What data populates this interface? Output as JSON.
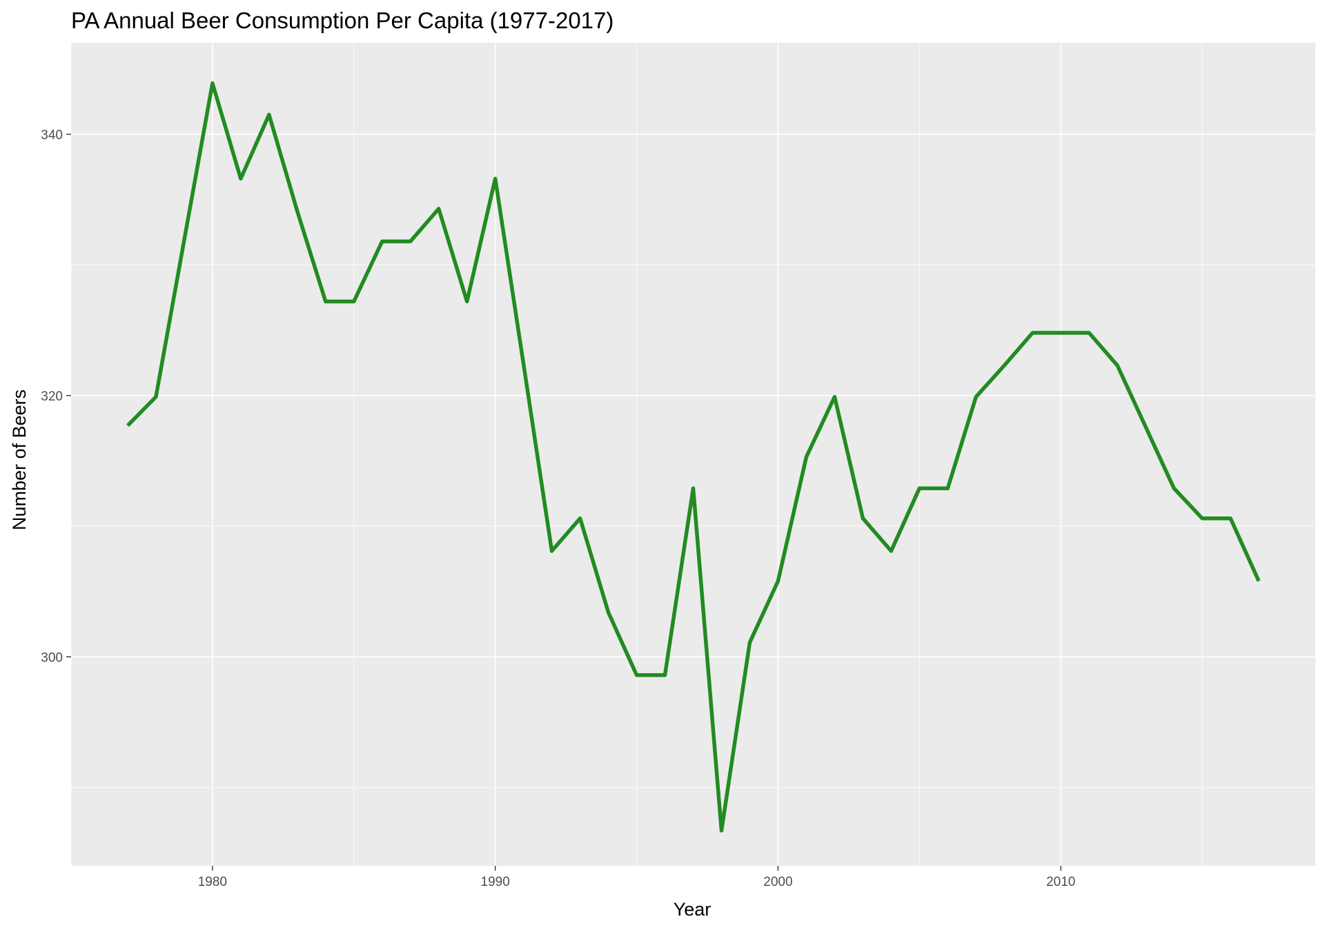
{
  "chart_data": {
    "type": "line",
    "title": "PA Annual Beer Consumption Per Capita (1977-2017)",
    "xlabel": "Year",
    "ylabel": "Number of Beers",
    "xlim": [
      1975,
      2019
    ],
    "ylim": [
      284,
      347
    ],
    "x_ticks": [
      1980,
      1990,
      2000,
      2010
    ],
    "x_tick_labels": [
      "1980",
      "1990",
      "2000",
      "2010"
    ],
    "y_ticks": [
      300,
      320,
      340
    ],
    "y_tick_labels": [
      "300",
      "320",
      "340"
    ],
    "x_minor_ticks": [
      1975,
      1985,
      1995,
      2005,
      2015
    ],
    "y_minor_ticks": [
      290,
      310,
      330
    ],
    "grid": true,
    "background": "#ebebeb",
    "line_color": "#228b22",
    "series": [
      {
        "x": [
          1977,
          1978,
          1979,
          1980,
          1981,
          1982,
          1983,
          1984,
          1985,
          1986,
          1987,
          1988,
          1989,
          1990,
          1991,
          1992,
          1993,
          1994,
          1995,
          1996,
          1997,
          1998,
          1999,
          2000,
          2001,
          2002,
          2003,
          2004,
          2005,
          2006,
          2007,
          2008,
          2009,
          2010,
          2011,
          2012,
          2013,
          2014,
          2015,
          2016,
          2017
        ],
        "values": [
          317.7,
          319.9,
          331.9,
          343.9,
          336.6,
          341.5,
          334.1,
          327.2,
          327.2,
          331.8,
          331.8,
          334.3,
          327.2,
          336.6,
          322.4,
          308.1,
          310.6,
          303.4,
          298.6,
          298.6,
          312.9,
          286.7,
          301.1,
          305.8,
          315.3,
          319.9,
          310.6,
          308.1,
          312.9,
          312.9,
          319.9,
          322.3,
          324.8,
          324.8,
          324.8,
          322.3,
          317.6,
          312.9,
          310.6,
          310.6,
          305.8
        ]
      }
    ]
  }
}
